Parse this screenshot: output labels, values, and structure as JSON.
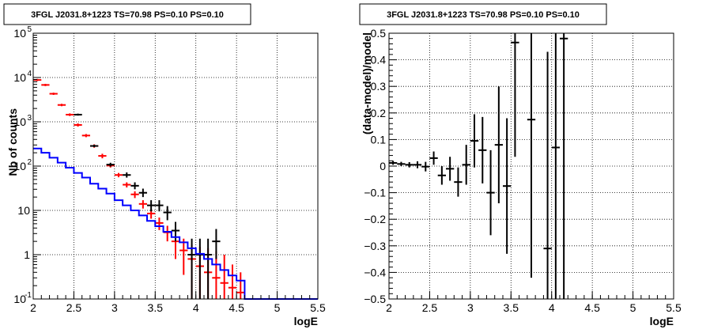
{
  "chart_data": [
    {
      "type": "step",
      "title": "3FGL J2031.8+1223 TS=70.98 PS=0.10 PS=0.10",
      "xlabel": "logE",
      "ylabel": "Nb of counts",
      "xlim": [
        2,
        5.5
      ],
      "ylim": [
        0.1,
        100000
      ],
      "yscale": "log",
      "grid": true,
      "x_ticks": [
        "2",
        "2.5",
        "3",
        "3.5",
        "4",
        "4.5",
        "5",
        "5.5"
      ],
      "y_ticks": [
        {
          "base": "10",
          "exp": "-1"
        },
        {
          "base": "1",
          "exp": ""
        },
        {
          "base": "10",
          "exp": ""
        },
        {
          "base": "10",
          "exp": "2"
        },
        {
          "base": "10",
          "exp": "3"
        },
        {
          "base": "10",
          "exp": "4"
        },
        {
          "base": "10",
          "exp": "5"
        }
      ],
      "series": [
        {
          "color": "#ff0000",
          "style": "markers",
          "points": [
            [
              2.05,
              8800,
              8300,
              9300
            ],
            [
              2.15,
              6800,
              6400,
              7200
            ],
            [
              2.25,
              4300,
              4050,
              4550
            ],
            [
              2.35,
              2400,
              2250,
              2550
            ],
            [
              2.45,
              1450,
              1350,
              1550
            ],
            [
              2.55,
              850,
              780,
              920
            ],
            [
              2.65,
              490,
              450,
              530
            ],
            [
              2.75,
              285,
              260,
              310
            ],
            [
              2.85,
              170,
              150,
              190
            ],
            [
              2.95,
              103,
              93,
              113
            ],
            [
              3.05,
              63,
              56,
              70
            ],
            [
              3.15,
              38,
              33,
              43
            ],
            [
              3.25,
              23,
              19,
              27
            ],
            [
              3.35,
              14,
              11,
              17
            ],
            [
              3.45,
              8.5,
              6.5,
              10.5
            ],
            [
              3.55,
              5.2,
              3.6,
              6.9
            ],
            [
              3.65,
              3.2,
              2.0,
              4.5
            ],
            [
              3.75,
              2.0,
              0.8,
              3.4
            ],
            [
              3.85,
              1.25,
              0.35,
              2.3
            ],
            [
              3.95,
              0.8,
              0.1,
              1.7
            ],
            [
              4.05,
              0.55,
              0.1,
              1.5
            ],
            [
              4.15,
              0.4,
              0.1,
              1.4
            ],
            [
              4.25,
              0.3,
              0.1,
              1.2
            ],
            [
              4.35,
              0.23,
              0.1,
              1.0
            ],
            [
              4.45,
              0.18,
              0.1,
              0.6
            ],
            [
              4.55,
              0.14,
              0.1,
              0.4
            ]
          ]
        },
        {
          "color": "#000000",
          "style": "errorbars",
          "points": [
            [
              2.55,
              1450,
              1380,
              1530
            ],
            [
              2.75,
              285,
              268,
              304
            ],
            [
              2.95,
              108,
              98,
              119
            ],
            [
              3.15,
              63,
              55,
              72
            ],
            [
              3.25,
              36,
              30,
              43
            ],
            [
              3.35,
              25,
              20,
              31
            ],
            [
              3.45,
              13,
              9.5,
              17
            ],
            [
              3.55,
              13,
              9.5,
              17
            ],
            [
              3.65,
              9,
              6,
              12.5
            ],
            [
              3.75,
              3.5,
              2.0,
              5.5
            ],
            [
              3.95,
              1,
              0.1,
              2.3
            ],
            [
              4.05,
              1,
              0.1,
              2.3
            ],
            [
              4.15,
              1,
              0.1,
              2.3
            ],
            [
              4.25,
              2,
              0.8,
              3.8
            ]
          ]
        },
        {
          "color": "#0000ff",
          "style": "histogram",
          "edges": [
            2.0,
            2.1,
            2.2,
            2.3,
            2.4,
            2.5,
            2.6,
            2.7,
            2.8,
            2.9,
            3.0,
            3.1,
            3.2,
            3.3,
            3.4,
            3.5,
            3.6,
            3.7,
            3.8,
            3.9,
            4.0,
            4.1,
            4.2,
            4.3,
            4.4,
            4.5,
            4.6,
            5.5
          ],
          "values": [
            250,
            200,
            155,
            120,
            92,
            70,
            55,
            40,
            31,
            24,
            17,
            13,
            10,
            7.7,
            5.8,
            4.4,
            3.3,
            2.5,
            1.9,
            1.4,
            1.05,
            0.8,
            0.6,
            0.45,
            0.34,
            0.26,
            0.1
          ]
        }
      ]
    },
    {
      "type": "scatter",
      "title": "3FGL J2031.8+1223 TS=70.98 PS=0.10 PS=0.10",
      "xlabel": "logE",
      "ylabel": "(data-model)/model",
      "xlim": [
        2,
        5.5
      ],
      "ylim": [
        -0.5,
        0.5
      ],
      "grid": true,
      "x_ticks": [
        "2",
        "2.5",
        "3",
        "3.5",
        "4",
        "4.5",
        "5",
        "5.5"
      ],
      "y_ticks": [
        "−0.5",
        "−0.4",
        "−0.3",
        "−0.2",
        "−0.1",
        "0",
        "0.1",
        "0.2",
        "0.3",
        "0.4",
        "0.5"
      ],
      "series": [
        {
          "color": "#000000",
          "style": "errorbars",
          "points": [
            [
              2.05,
              0.012,
              0.005,
              0.02
            ],
            [
              2.15,
              0.008,
              0.0,
              0.016
            ],
            [
              2.25,
              0.005,
              -0.005,
              0.015
            ],
            [
              2.35,
              0.005,
              -0.008,
              0.018
            ],
            [
              2.45,
              -0.002,
              -0.02,
              0.016
            ],
            [
              2.55,
              0.03,
              0.005,
              0.055
            ],
            [
              2.65,
              -0.035,
              -0.07,
              0.0
            ],
            [
              2.75,
              -0.01,
              -0.055,
              0.035
            ],
            [
              2.85,
              -0.06,
              -0.115,
              -0.005
            ],
            [
              2.95,
              0.005,
              -0.07,
              0.08
            ],
            [
              3.05,
              0.095,
              -0.005,
              0.195
            ],
            [
              3.15,
              0.06,
              -0.065,
              0.185
            ],
            [
              3.25,
              -0.1,
              -0.26,
              0.06
            ],
            [
              3.35,
              0.08,
              -0.14,
              0.3
            ],
            [
              3.45,
              -0.075,
              -0.33,
              0.18
            ],
            [
              3.55,
              0.465,
              0.035,
              0.5
            ],
            [
              3.75,
              0.175,
              -0.42,
              0.5
            ],
            [
              3.95,
              -0.31,
              -0.5,
              0.43
            ],
            [
              4.05,
              0.07,
              -0.5,
              0.5
            ],
            [
              4.15,
              0.48,
              -0.5,
              0.5
            ]
          ]
        }
      ]
    }
  ]
}
